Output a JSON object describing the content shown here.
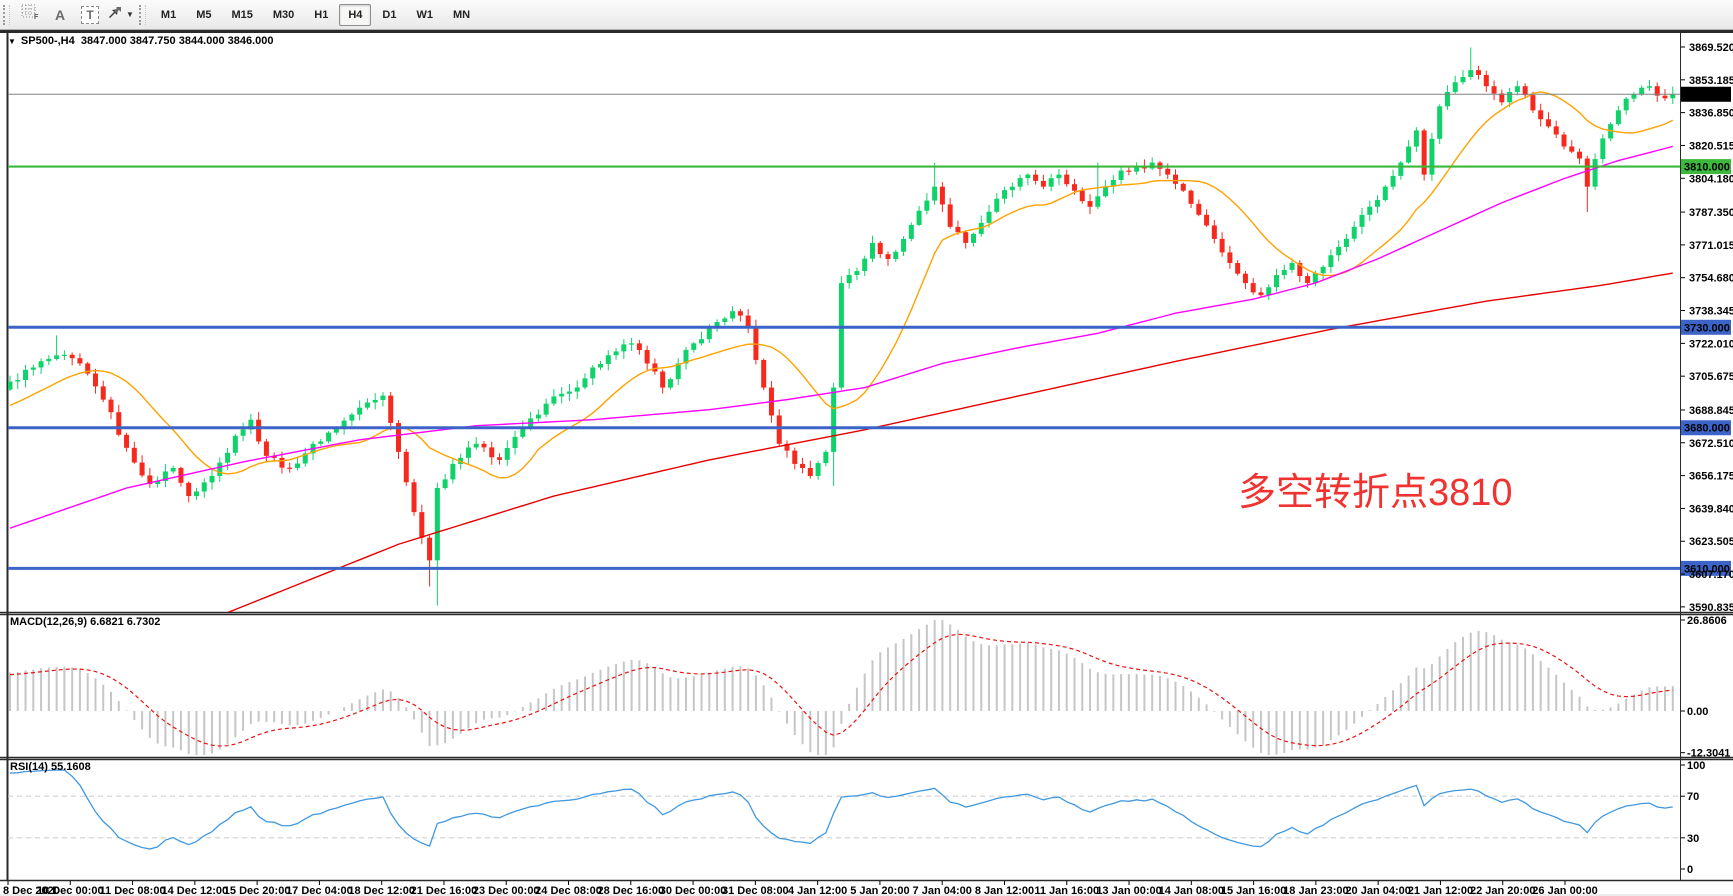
{
  "toolbar": {
    "tools": {
      "f_label": "F",
      "a_label": "A",
      "t_label": "T",
      "caret": "▼"
    },
    "timeframes": [
      "M1",
      "M5",
      "M15",
      "M30",
      "H1",
      "H4",
      "D1",
      "W1",
      "MN"
    ],
    "active_timeframe": "H4"
  },
  "chart": {
    "dropdown_glyph": "▼",
    "symbol_info": "SP500-,H4  3847.000 3847.750 3844.000 3846.000"
  },
  "indicators": {
    "macd": {
      "label": "MACD(12,26,9) 6.6821 6.7302"
    },
    "rsi": {
      "label": "RSI(14) 55.1608"
    }
  },
  "chart_data": {
    "type": "candlestick",
    "symbol": "SP500-",
    "timeframe": "H4",
    "ohlc_display": {
      "open": "3847.000",
      "high": "3847.750",
      "low": "3844.000",
      "close": "3846.000"
    },
    "bars": 215,
    "candle_up": "#0FD26B",
    "candle_down": "#F5291D",
    "close_anchors": [
      [
        0,
        3703
      ],
      [
        3,
        3710
      ],
      [
        6,
        3716
      ],
      [
        9,
        3712
      ],
      [
        12,
        3694
      ],
      [
        15,
        3670
      ],
      [
        18,
        3652
      ],
      [
        21,
        3660
      ],
      [
        23,
        3646
      ],
      [
        26,
        3656
      ],
      [
        29,
        3676
      ],
      [
        31,
        3684
      ],
      [
        33,
        3666
      ],
      [
        36,
        3660
      ],
      [
        39,
        3672
      ],
      [
        42,
        3680
      ],
      [
        45,
        3690
      ],
      [
        48,
        3696
      ],
      [
        50,
        3668
      ],
      [
        52,
        3638
      ],
      [
        54,
        3614
      ],
      [
        55,
        3650
      ],
      [
        57,
        3662
      ],
      [
        60,
        3672
      ],
      [
        63,
        3664
      ],
      [
        66,
        3680
      ],
      [
        69,
        3692
      ],
      [
        72,
        3698
      ],
      [
        75,
        3710
      ],
      [
        78,
        3718
      ],
      [
        80,
        3722
      ],
      [
        82,
        3712
      ],
      [
        84,
        3700
      ],
      [
        86,
        3712
      ],
      [
        88,
        3722
      ],
      [
        90,
        3730
      ],
      [
        93,
        3738
      ],
      [
        95,
        3730
      ],
      [
        97,
        3700
      ],
      [
        99,
        3672
      ],
      [
        101,
        3662
      ],
      [
        103,
        3656
      ],
      [
        105,
        3668
      ],
      [
        106,
        3700
      ],
      [
        107,
        3752
      ],
      [
        109,
        3758
      ],
      [
        111,
        3772
      ],
      [
        113,
        3764
      ],
      [
        115,
        3774
      ],
      [
        117,
        3788
      ],
      [
        119,
        3800
      ],
      [
        121,
        3780
      ],
      [
        123,
        3772
      ],
      [
        125,
        3782
      ],
      [
        127,
        3794
      ],
      [
        129,
        3800
      ],
      [
        131,
        3806
      ],
      [
        133,
        3800
      ],
      [
        135,
        3806
      ],
      [
        137,
        3798
      ],
      [
        139,
        3790
      ],
      [
        141,
        3800
      ],
      [
        143,
        3808
      ],
      [
        145,
        3810
      ],
      [
        147,
        3812
      ],
      [
        149,
        3806
      ],
      [
        151,
        3798
      ],
      [
        153,
        3786
      ],
      [
        155,
        3774
      ],
      [
        157,
        3762
      ],
      [
        159,
        3752
      ],
      [
        161,
        3746
      ],
      [
        163,
        3756
      ],
      [
        165,
        3762
      ],
      [
        167,
        3752
      ],
      [
        169,
        3760
      ],
      [
        171,
        3770
      ],
      [
        173,
        3780
      ],
      [
        175,
        3790
      ],
      [
        177,
        3800
      ],
      [
        179,
        3812
      ],
      [
        181,
        3828
      ],
      [
        182,
        3806
      ],
      [
        184,
        3840
      ],
      [
        186,
        3852
      ],
      [
        188,
        3858
      ],
      [
        190,
        3850
      ],
      [
        192,
        3842
      ],
      [
        194,
        3850
      ],
      [
        196,
        3838
      ],
      [
        198,
        3830
      ],
      [
        200,
        3820
      ],
      [
        202,
        3814
      ],
      [
        203,
        3800
      ],
      [
        205,
        3824
      ],
      [
        207,
        3838
      ],
      [
        209,
        3846
      ],
      [
        211,
        3850
      ],
      [
        213,
        3844
      ],
      [
        214,
        3846
      ]
    ],
    "wick_overrides": [
      [
        6,
        "high",
        3726
      ],
      [
        54,
        "low",
        3601
      ],
      [
        55,
        "low",
        3591.5
      ],
      [
        106,
        "low",
        3651
      ],
      [
        119,
        "high",
        3812
      ],
      [
        140,
        "high",
        3812
      ],
      [
        188,
        "high",
        3869.3
      ],
      [
        203,
        "low",
        3787.4
      ]
    ],
    "levels": [
      {
        "value": 3846,
        "label": "3846.000",
        "type": "current-price",
        "line_color": "#808080",
        "width": 1,
        "badge_bg": "#000000",
        "badge_fg": "#FFFFFF"
      },
      {
        "value": 3810,
        "label": "3810.000",
        "type": "horizontal-line",
        "line_color": "#3CB83C",
        "width": 2.2,
        "badge_bg": "#3CB83C",
        "badge_fg": "#103800"
      },
      {
        "value": 3730,
        "label": "3730.000",
        "type": "horizontal-line",
        "line_color": "#3C64C8",
        "width": 3,
        "badge_bg": "#3C64C8",
        "badge_fg": "#FFFFFF"
      },
      {
        "value": 3680,
        "label": "3680.000",
        "type": "horizontal-line",
        "line_color": "#3C64C8",
        "width": 3,
        "badge_bg": "#3C64C8",
        "badge_fg": "#FFFFFF"
      },
      {
        "value": 3610,
        "label": "3610.000",
        "type": "horizontal-line",
        "line_color": "#3C64C8",
        "width": 3,
        "badge_bg": "#3C64C8",
        "badge_fg": "#FFFFFF"
      }
    ],
    "price_axis": {
      "ylim": [
        3588,
        3876.5
      ],
      "ticks": [
        [
          3869.52,
          "3869.520"
        ],
        [
          3853.185,
          "3853.185"
        ],
        [
          3836.85,
          "3836.850"
        ],
        [
          3820.515,
          "3820.515"
        ],
        [
          3804.18,
          "3804.180"
        ],
        [
          3787.35,
          "3787.350"
        ],
        [
          3771.015,
          "3771.015"
        ],
        [
          3754.68,
          "3754.680"
        ],
        [
          3738.345,
          "3738.345"
        ],
        [
          3722.01,
          "3722.010"
        ],
        [
          3705.675,
          "3705.675"
        ],
        [
          3688.845,
          "3688.845"
        ],
        [
          3672.51,
          "3672.510"
        ],
        [
          3656.175,
          "3656.175"
        ],
        [
          3639.84,
          "3639.840"
        ],
        [
          3623.505,
          "3623.505"
        ],
        [
          3607.17,
          "3607.170"
        ],
        [
          3590.835,
          "3590.835"
        ]
      ]
    },
    "moving_averages": [
      {
        "name": "fast-ma",
        "color": "#FFA200",
        "period": 14,
        "type": "sma-of-closes"
      },
      {
        "name": "mid-ma",
        "color": "#FF00FF",
        "anchors": [
          [
            0,
            3630
          ],
          [
            15,
            3650
          ],
          [
            30,
            3663
          ],
          [
            45,
            3674
          ],
          [
            60,
            3681
          ],
          [
            75,
            3684
          ],
          [
            90,
            3689
          ],
          [
            100,
            3694
          ],
          [
            110,
            3700
          ],
          [
            120,
            3712
          ],
          [
            130,
            3720
          ],
          [
            140,
            3727
          ],
          [
            150,
            3737
          ],
          [
            160,
            3744
          ],
          [
            168,
            3752
          ],
          [
            176,
            3764
          ],
          [
            184,
            3778
          ],
          [
            192,
            3792
          ],
          [
            200,
            3804
          ],
          [
            207,
            3813
          ],
          [
            214,
            3820
          ]
        ]
      },
      {
        "name": "slow-ma",
        "color": "#E60000",
        "anchors": [
          [
            28,
            3588
          ],
          [
            50,
            3622
          ],
          [
            70,
            3646
          ],
          [
            90,
            3664
          ],
          [
            110,
            3679
          ],
          [
            130,
            3696
          ],
          [
            150,
            3713
          ],
          [
            170,
            3729
          ],
          [
            190,
            3743
          ],
          [
            205,
            3751
          ],
          [
            214,
            3757
          ]
        ]
      }
    ],
    "time_axis": {
      "labels": [
        "8 Dec 2020",
        "10 Dec 00:00",
        "11 Dec 08:00",
        "14 Dec 12:00",
        "15 Dec 20:00",
        "17 Dec 04:00",
        "18 Dec 12:00",
        "21 Dec 16:00",
        "23 Dec 00:00",
        "24 Dec 08:00",
        "28 Dec 16:00",
        "30 Dec 00:00",
        "31 Dec 08:00",
        "4 Jan 12:00",
        "5 Jan 20:00",
        "7 Jan 04:00",
        "8 Jan 12:00",
        "11 Jan 16:00",
        "13 Jan 00:00",
        "14 Jan 08:00",
        "15 Jan 16:00",
        "18 Jan 23:00",
        "20 Jan 04:00",
        "21 Jan 12:00",
        "22 Jan 20:00",
        "26 Jan 00:00"
      ]
    },
    "macd": {
      "label": "MACD(12,26,9) 6.6821 6.7302",
      "values_display": [
        "6.6821",
        "6.7302"
      ],
      "ticks": [
        [
          26.8606,
          "26.8606"
        ],
        [
          0,
          "0.00"
        ],
        [
          -12.3041,
          "-12.3041"
        ]
      ],
      "hist_color": "#C6C6C6",
      "signal_color": "#E81414"
    },
    "rsi": {
      "label": "RSI(14) 55.1608",
      "value_display": "55.1608",
      "ticks": [
        [
          100,
          "100"
        ],
        [
          70,
          "70"
        ],
        [
          30,
          "30"
        ],
        [
          0,
          "0"
        ]
      ],
      "level_lines": [
        70,
        30
      ],
      "level_color": "#CFCFCF",
      "line_color": "#4098E0"
    },
    "annotation": {
      "text": "多空转折点3810",
      "color": "#F03230"
    }
  }
}
